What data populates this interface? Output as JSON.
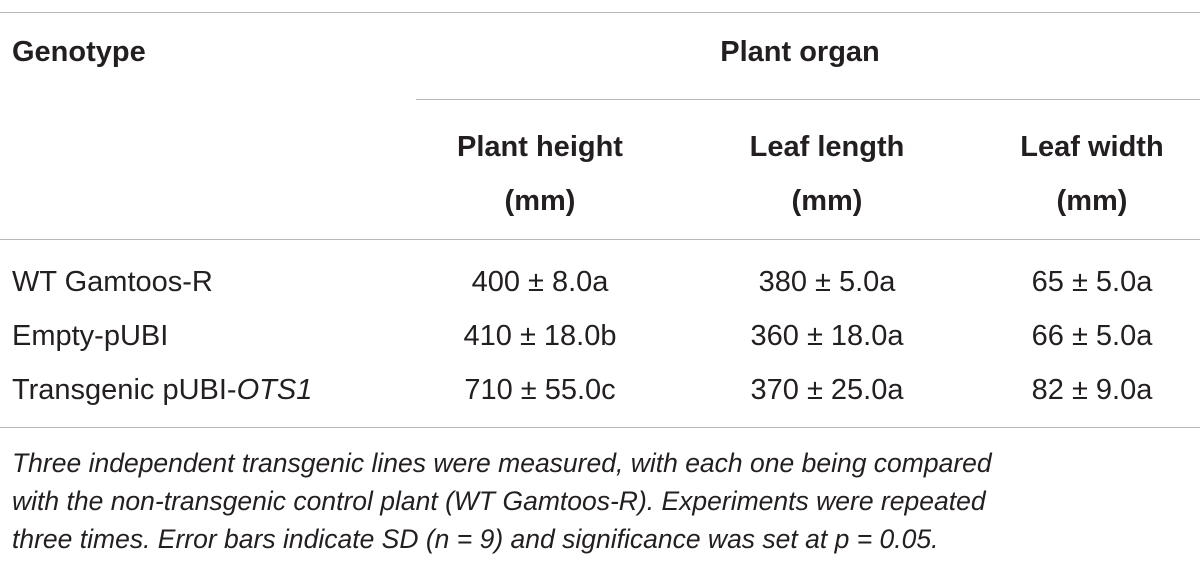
{
  "table": {
    "header": {
      "genotype": "Genotype",
      "group": "Plant organ",
      "columns": [
        {
          "line1": "Plant height",
          "line2": "(mm)"
        },
        {
          "line1": "Leaf length",
          "line2": "(mm)"
        },
        {
          "line1": "Leaf width",
          "line2": "(mm)"
        }
      ]
    },
    "rows": [
      {
        "genotype": "WT Gamtoos-R",
        "genotype_italic": "",
        "values": [
          "400 ± 8.0a",
          "380 ± 5.0a",
          "65 ± 5.0a"
        ]
      },
      {
        "genotype": "Empty-pUBI",
        "genotype_italic": "",
        "values": [
          "410 ± 18.0b",
          "360 ± 18.0a",
          "66 ± 5.0a"
        ]
      },
      {
        "genotype": "Transgenic pUBI-",
        "genotype_italic": "OTS1",
        "values": [
          "710 ± 55.0c",
          "370 ± 25.0a",
          "82 ± 9.0a"
        ]
      }
    ]
  },
  "caption": {
    "lines": [
      "Three independent transgenic lines were measured, with each one being compared",
      "with the non-transgenic control plant (WT Gamtoos-R). Experiments were repeated",
      "three times. Error bars indicate SD (n = 9) and significance was set at p = 0.05."
    ]
  }
}
